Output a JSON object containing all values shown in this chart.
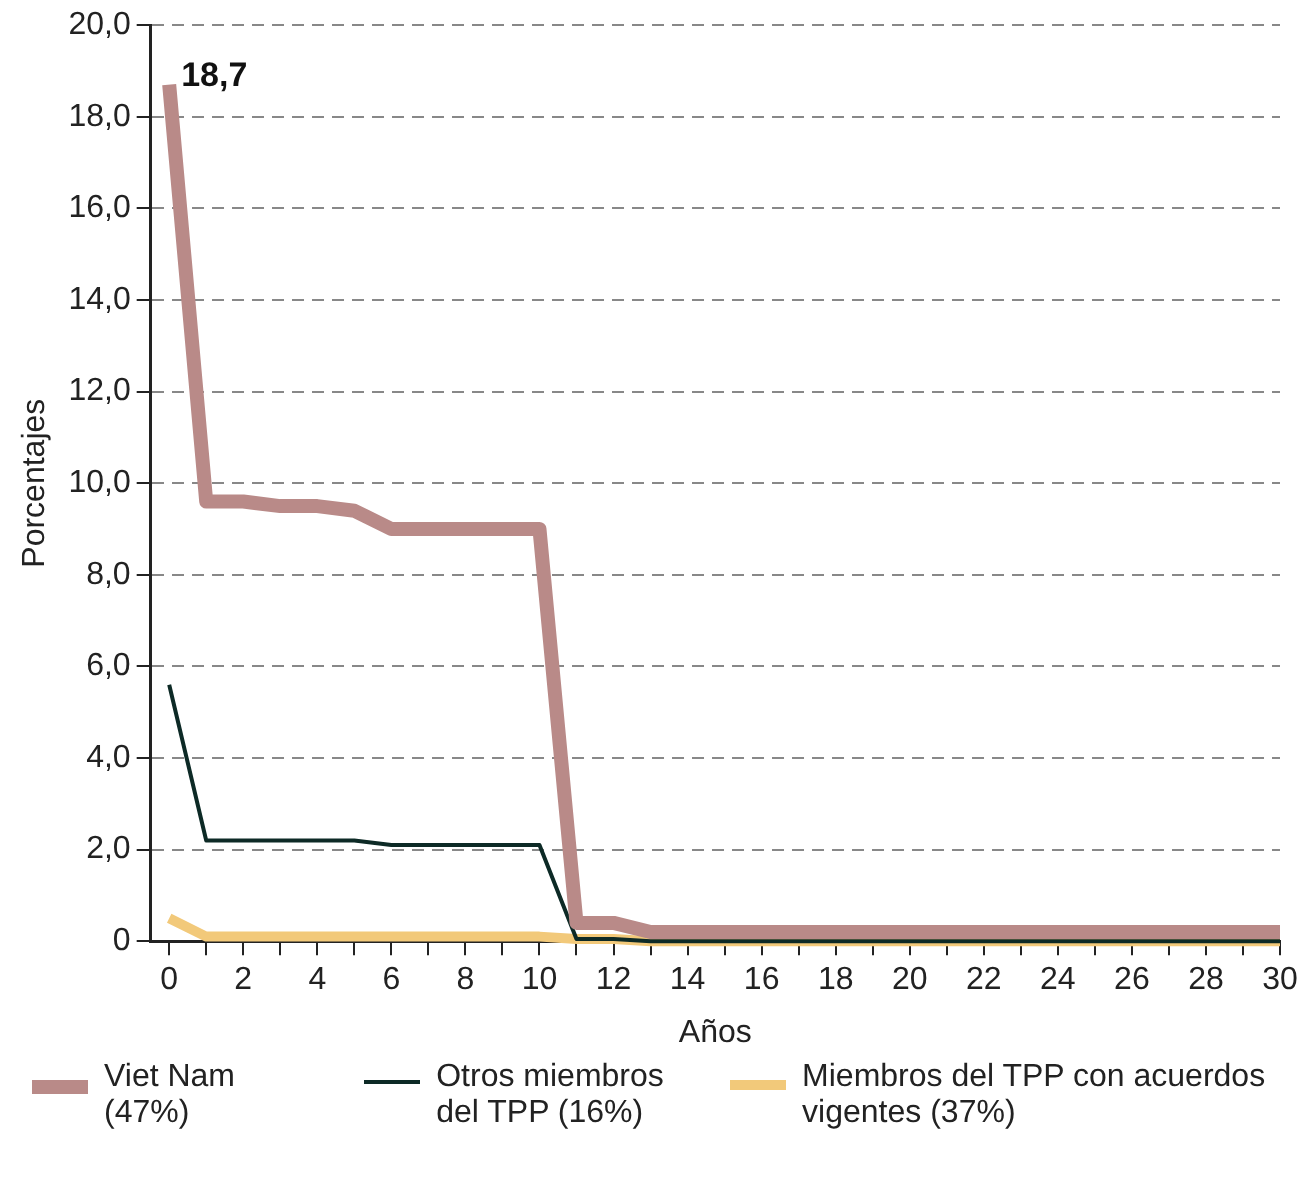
{
  "chart_data": {
    "type": "line",
    "xlabel": "Años",
    "ylabel": "Porcentajes",
    "x": [
      0,
      1,
      2,
      3,
      4,
      5,
      6,
      7,
      8,
      9,
      10,
      11,
      12,
      13,
      14,
      15,
      16,
      17,
      18,
      19,
      20,
      21,
      22,
      23,
      24,
      25,
      26,
      27,
      28,
      29,
      30
    ],
    "series": [
      {
        "name": "Viet Nam (47%)",
        "color": "#b98a88",
        "values": [
          18.7,
          9.6,
          9.6,
          9.5,
          9.5,
          9.4,
          9.0,
          9.0,
          9.0,
          9.0,
          9.0,
          0.4,
          0.4,
          0.2,
          0.2,
          0.2,
          0.2,
          0.2,
          0.2,
          0.2,
          0.2,
          0.2,
          0.2,
          0.2,
          0.2,
          0.2,
          0.2,
          0.2,
          0.2,
          0.2,
          0.2
        ]
      },
      {
        "name": "Otros miembros del TPP (16%)",
        "color": "#0d2a26",
        "values": [
          5.6,
          2.2,
          2.2,
          2.2,
          2.2,
          2.2,
          2.1,
          2.1,
          2.1,
          2.1,
          2.1,
          0.05,
          0.05,
          0,
          0,
          0,
          0,
          0,
          0,
          0,
          0,
          0,
          0,
          0,
          0,
          0,
          0,
          0,
          0,
          0,
          0
        ]
      },
      {
        "name": "Miembros del TPP con acuerdos vigentes (37%)",
        "color": "#f2c97a",
        "values": [
          0.5,
          0.1,
          0.1,
          0.1,
          0.1,
          0.1,
          0.1,
          0.1,
          0.1,
          0.1,
          0.1,
          0.05,
          0.05,
          0,
          0,
          0,
          0,
          0,
          0,
          0,
          0,
          0,
          0,
          0,
          0,
          0,
          0,
          0,
          0,
          0,
          0
        ]
      }
    ],
    "xlim": [
      -0.5,
      30
    ],
    "xticks": [
      0,
      {
        "value": 1,
        "label": null
      },
      2,
      {
        "value": 3,
        "label": null
      },
      4,
      {
        "value": 5,
        "label": null
      },
      6,
      {
        "value": 7,
        "label": null
      },
      8,
      {
        "value": 9,
        "label": null
      },
      10,
      {
        "value": 11,
        "label": null
      },
      12,
      {
        "value": 13,
        "label": null
      },
      14,
      {
        "value": 15,
        "label": null
      },
      16,
      {
        "value": 17,
        "label": null
      },
      18,
      {
        "value": 19,
        "label": null
      },
      20,
      {
        "value": 21,
        "label": null
      },
      22,
      {
        "value": 23,
        "label": null
      },
      24,
      {
        "value": 25,
        "label": null
      },
      26,
      {
        "value": 27,
        "label": null
      },
      28,
      {
        "value": 29,
        "label": null
      },
      30
    ],
    "ylim": [
      0,
      20
    ],
    "yticks": [
      {
        "value": 0,
        "label": "0"
      },
      {
        "value": 2,
        "label": "2,0"
      },
      {
        "value": 4,
        "label": "4,0"
      },
      {
        "value": 6,
        "label": "6,0"
      },
      {
        "value": 8,
        "label": "8,0"
      },
      {
        "value": 10,
        "label": "10,0"
      },
      {
        "value": 12,
        "label": "12,0"
      },
      {
        "value": 14,
        "label": "14,0"
      },
      {
        "value": 16,
        "label": "16,0"
      },
      {
        "value": 18,
        "label": "18,0"
      },
      {
        "value": 20,
        "label": "20,0"
      }
    ],
    "annotations": [
      {
        "text": "18,7",
        "x": 0,
        "y": 18.7
      }
    ],
    "grid": "y",
    "legend": "bottom",
    "marker": "none",
    "line_style": "solid"
  }
}
